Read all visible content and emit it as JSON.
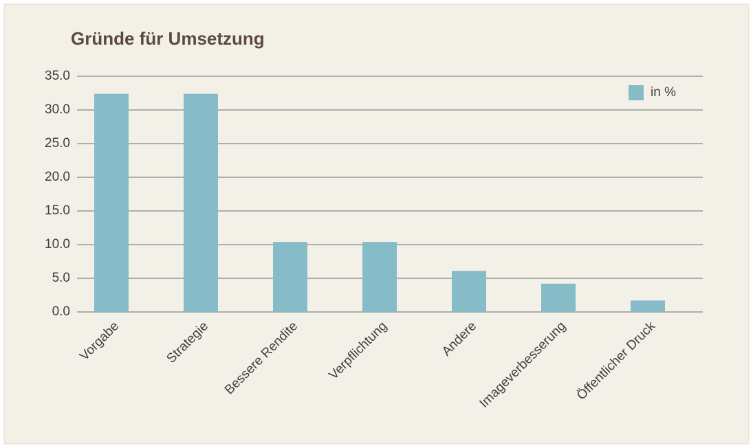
{
  "chart_data": {
    "type": "bar",
    "title": "Gründe für Umsetzung",
    "categories": [
      "Vorgabe",
      "Strategie",
      "Bessere Rendite",
      "Verpflichtung",
      "Andere",
      "Imageverbesserung",
      "Öffentlicher Druck"
    ],
    "series": [
      {
        "name": "in %",
        "color": "#86bcc8",
        "values": [
          32.4,
          32.4,
          10.4,
          10.4,
          6.1,
          4.2,
          1.7
        ]
      }
    ],
    "ylim": [
      0,
      35
    ],
    "yticks": [
      {
        "value": 0,
        "label": "0.0"
      },
      {
        "value": 5,
        "label": "5.0"
      },
      {
        "value": 10,
        "label": "10.0"
      },
      {
        "value": 15,
        "label": "15.0"
      },
      {
        "value": 20,
        "label": "20.0"
      },
      {
        "value": 25,
        "label": "25.0"
      },
      {
        "value": 30,
        "label": "30.0"
      },
      {
        "value": 35,
        "label": "35.0"
      }
    ],
    "grid": true,
    "legend": "top-right"
  }
}
